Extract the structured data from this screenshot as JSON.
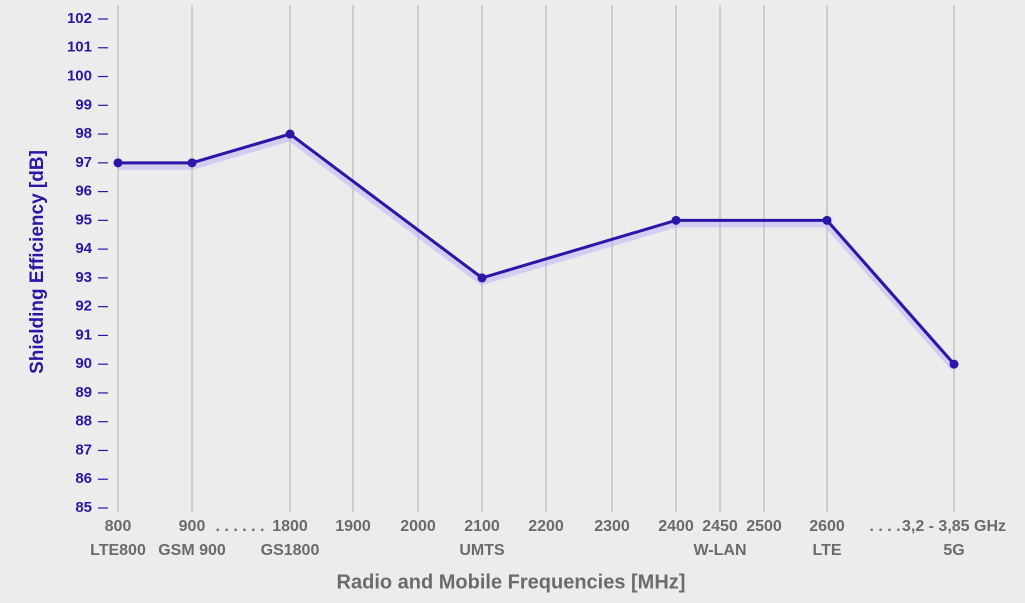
{
  "chart_data": {
    "type": "line",
    "y_label": "Shielding Efficiency [dB]",
    "x_label": "Radio and Mobile Frequencies [MHz]",
    "categories": [
      "800",
      "900",
      "1800",
      "1900",
      "2000",
      "2100",
      "2200",
      "2300",
      "2400",
      "2450",
      "2500",
      "2600",
      "3,2 - 3,85 GHz"
    ],
    "sublabels": [
      "LTE800",
      "GSM 900",
      "GS1800",
      null,
      null,
      "UMTS",
      null,
      null,
      null,
      "W-LAN",
      null,
      "LTE",
      "5G"
    ],
    "annotations": [
      ". . . . . .",
      ". . . ."
    ],
    "series": [
      {
        "color": "#2a17a8",
        "x": [
          "800",
          "900",
          "1800",
          "2100",
          "2400",
          "2600",
          "3,2 - 3,85 GHz"
        ],
        "values": [
          97,
          97,
          98,
          93,
          95,
          95,
          90
        ]
      }
    ],
    "ylim": [
      85,
      102
    ],
    "yticks": [
      85,
      86,
      87,
      88,
      89,
      90,
      91,
      92,
      93,
      94,
      95,
      96,
      97,
      98,
      99,
      100,
      101,
      102
    ],
    "grid": true
  }
}
